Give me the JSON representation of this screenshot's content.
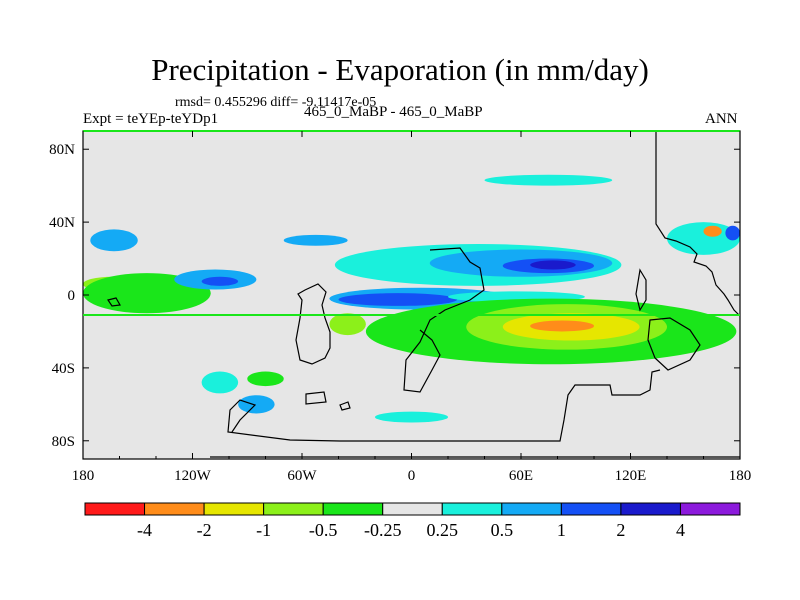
{
  "header": {
    "title": "Precipitation - Evaporation (in mm/day)",
    "stats": "rmsd= 0.455296 diff= -9.11417e-05",
    "experiment": "Expt = teYEp-teYDp1",
    "case": "465_0_MaBP - 465_0_MaBP",
    "season": "ANN"
  },
  "chart_data": {
    "type": "heatmap",
    "title": "Precipitation - Evaporation (in mm/day)",
    "projection": "cylindrical equidistant",
    "xlim": [
      -180,
      180
    ],
    "ylim": [
      -90,
      90
    ],
    "x_ticks": [
      {
        "value": -180,
        "label": "180"
      },
      {
        "value": -120,
        "label": "120W"
      },
      {
        "value": -60,
        "label": "60W"
      },
      {
        "value": 0,
        "label": "0"
      },
      {
        "value": 60,
        "label": "60E"
      },
      {
        "value": 120,
        "label": "120E"
      },
      {
        "value": 180,
        "label": "180"
      }
    ],
    "y_ticks": [
      {
        "value": 80,
        "label": "80N"
      },
      {
        "value": 40,
        "label": "40N"
      },
      {
        "value": 0,
        "label": "0"
      },
      {
        "value": -40,
        "label": "40S"
      },
      {
        "value": -80,
        "label": "80S"
      }
    ],
    "contour_levels": [
      "-4",
      "-2",
      "-1",
      "-0.5",
      "-0.25",
      "0.25",
      "0.5",
      "1",
      "2",
      "4"
    ],
    "colors": [
      "#ff1a1a",
      "#ff8c1a",
      "#e6e600",
      "#8cf01a",
      "#1ae61a",
      "#e6e6e6",
      "#1af0dc",
      "#14aaf5",
      "#1450f5",
      "#1a1acc",
      "#8c1adc"
    ],
    "background_color": "#e6e6e6",
    "regions": [
      {
        "level": "-0.5",
        "lon": [
          -180,
          -148
        ],
        "lat": [
          2,
          10
        ]
      },
      {
        "level": "-0.25",
        "lon": [
          -180,
          -110
        ],
        "lat": [
          -10,
          12
        ]
      },
      {
        "level": "0.5",
        "lon": [
          -176,
          -150
        ],
        "lat": [
          24,
          36
        ]
      },
      {
        "level": "0.5",
        "lon": [
          -130,
          -85
        ],
        "lat": [
          3,
          14
        ]
      },
      {
        "level": "1",
        "lon": [
          -115,
          -95
        ],
        "lat": [
          5,
          10
        ]
      },
      {
        "level": "0.5",
        "lon": [
          -70,
          -35
        ],
        "lat": [
          27,
          33
        ]
      },
      {
        "level": "0.25",
        "lon": [
          -42,
          115
        ],
        "lat": [
          5,
          28
        ]
      },
      {
        "level": "0.5",
        "lon": [
          10,
          110
        ],
        "lat": [
          10,
          25
        ]
      },
      {
        "level": "1",
        "lon": [
          50,
          100
        ],
        "lat": [
          12,
          20
        ]
      },
      {
        "level": "2",
        "lon": [
          65,
          90
        ],
        "lat": [
          14,
          19
        ]
      },
      {
        "level": "0.5",
        "lon": [
          -45,
          55
        ],
        "lat": [
          -8,
          4
        ]
      },
      {
        "level": "1",
        "lon": [
          -40,
          25
        ],
        "lat": [
          -6,
          1
        ]
      },
      {
        "level": "0.25",
        "lon": [
          20,
          95
        ],
        "lat": [
          -4,
          2
        ]
      },
      {
        "level": "-0.25",
        "lon": [
          -25,
          178
        ],
        "lat": [
          -38,
          -2
        ]
      },
      {
        "level": "-0.5",
        "lon": [
          30,
          140
        ],
        "lat": [
          -30,
          -5
        ]
      },
      {
        "level": "-1",
        "lon": [
          50,
          125
        ],
        "lat": [
          -25,
          -10
        ]
      },
      {
        "level": "-2",
        "lon": [
          65,
          100
        ],
        "lat": [
          -20,
          -14
        ]
      },
      {
        "level": "-0.5",
        "lon": [
          -45,
          -25
        ],
        "lat": [
          -22,
          -10
        ]
      },
      {
        "level": "0.25",
        "lon": [
          40,
          110
        ],
        "lat": [
          60,
          66
        ]
      },
      {
        "level": "0.25",
        "lon": [
          -115,
          -95
        ],
        "lat": [
          -54,
          -42
        ]
      },
      {
        "level": "0.5",
        "lon": [
          -95,
          -75
        ],
        "lat": [
          -65,
          -55
        ]
      },
      {
        "level": "0.25",
        "lon": [
          140,
          180
        ],
        "lat": [
          22,
          40
        ]
      },
      {
        "level": "-2",
        "lon": [
          160,
          170
        ],
        "lat": [
          32,
          38
        ]
      },
      {
        "level": "1",
        "lon": [
          172,
          180
        ],
        "lat": [
          30,
          38
        ]
      },
      {
        "level": "-0.25",
        "lon": [
          -90,
          -70
        ],
        "lat": [
          -50,
          -42
        ]
      },
      {
        "level": "0.25",
        "lon": [
          -20,
          20
        ],
        "lat": [
          -70,
          -64
        ]
      }
    ]
  }
}
